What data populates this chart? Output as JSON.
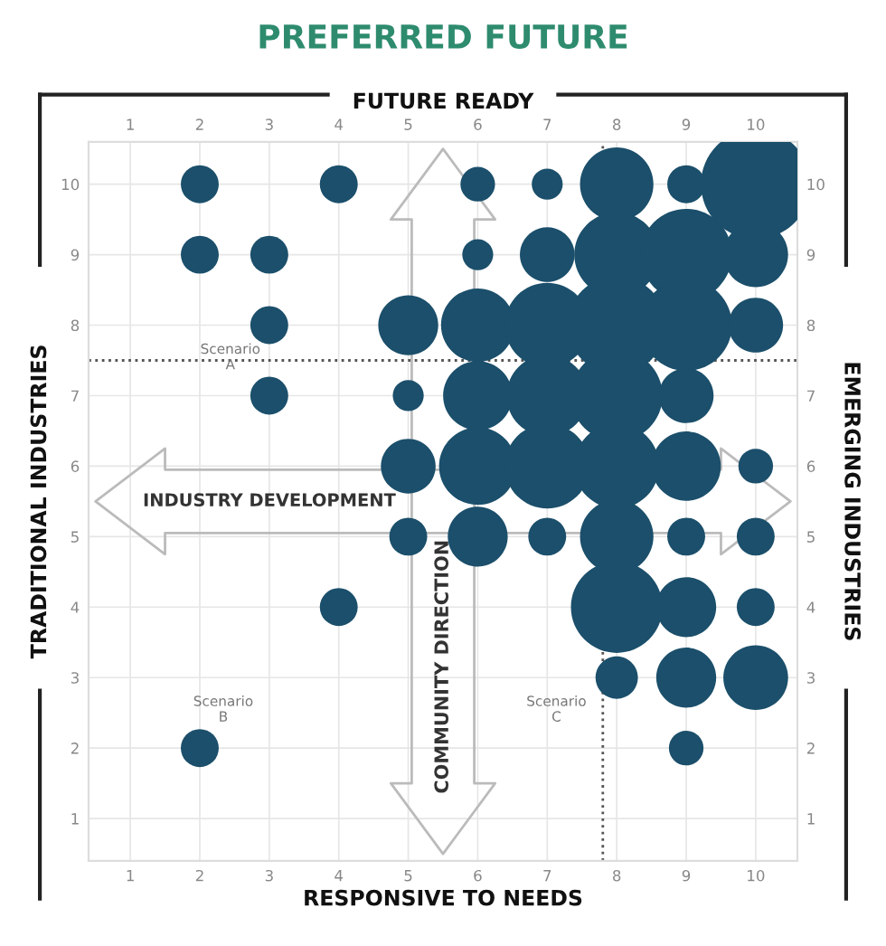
{
  "chart_data": {
    "type": "bubble",
    "title": "PREFERRED FUTURE",
    "xlabel": "RESPONSIVE TO NEEDS",
    "x2label": "FUTURE READY",
    "ylabel": "TRADITIONAL INDUSTRIES",
    "y2label": "EMERGING INDUSTRIES",
    "series": [
      {
        "color": "#1b4f6b",
        "x": [
          2,
          4,
          6,
          7,
          8,
          9,
          10,
          2,
          3,
          6,
          7,
          8,
          9,
          10,
          3,
          5,
          6,
          7,
          8,
          9,
          10,
          3,
          5,
          6,
          7,
          8,
          9,
          5,
          6,
          7,
          8,
          9,
          10,
          5,
          6,
          7,
          8,
          9,
          10,
          4,
          8,
          9,
          10,
          8,
          9,
          10,
          2,
          9
        ],
        "values": [
          10,
          10,
          10,
          10,
          10,
          10,
          10,
          9,
          9,
          9,
          9,
          9,
          9,
          9,
          8,
          8,
          8,
          8,
          8,
          8,
          8,
          7,
          7,
          7,
          7,
          7,
          7,
          6,
          6,
          6,
          6,
          6,
          6,
          5,
          5,
          5,
          5,
          5,
          5,
          4,
          4,
          4,
          4,
          3,
          3,
          3,
          2,
          2
        ],
        "sizes": [
          0.12,
          0.12,
          0.1,
          0.08,
          0.45,
          0.12,
          1,
          0.12,
          0.12,
          0.08,
          0.25,
          0.6,
          0.7,
          0.35,
          0.12,
          0.3,
          0.45,
          0.6,
          0.8,
          0.7,
          0.25,
          0.12,
          0.08,
          0.4,
          0.55,
          0.7,
          0.25,
          0.25,
          0.5,
          0.6,
          0.6,
          0.4,
          0.1,
          0.12,
          0.3,
          0.12,
          0.45,
          0.12,
          0.12,
          0.12,
          0.7,
          0.3,
          0.12,
          0.15,
          0.3,
          0.35,
          0.12,
          0.1
        ]
      }
    ],
    "xlim": [
      0.4,
      10.6
    ],
    "ylim": [
      0.4,
      10.6
    ],
    "x2lim": [
      0.4,
      10.6
    ],
    "y2lim": [
      0.4,
      10.6
    ],
    "xticks": [
      1,
      2,
      3,
      4,
      5,
      6,
      7,
      8,
      9,
      10
    ],
    "yticks": [
      1,
      2,
      3,
      4,
      5,
      6,
      7,
      8,
      9,
      10
    ],
    "x2ticks": [
      1,
      2,
      3,
      4,
      5,
      6,
      7,
      8,
      9,
      10
    ],
    "y2ticks": [
      1,
      2,
      3,
      4,
      5,
      6,
      7,
      8,
      9,
      10
    ],
    "grid": true,
    "legend": false,
    "ref_lines": [
      {
        "axis": "y",
        "value": 7.5,
        "line_style": "dotted",
        "color": "#555555"
      },
      {
        "axis": "x",
        "value": 7.8,
        "line_style": "dotted",
        "color": "#555555"
      }
    ],
    "annotations": [
      "Scenario\nA",
      "Scenario\nB",
      "Scenario\nC",
      "INDUSTRY DEVELOPMENT",
      "COMMUNITY DIRECTION"
    ]
  }
}
